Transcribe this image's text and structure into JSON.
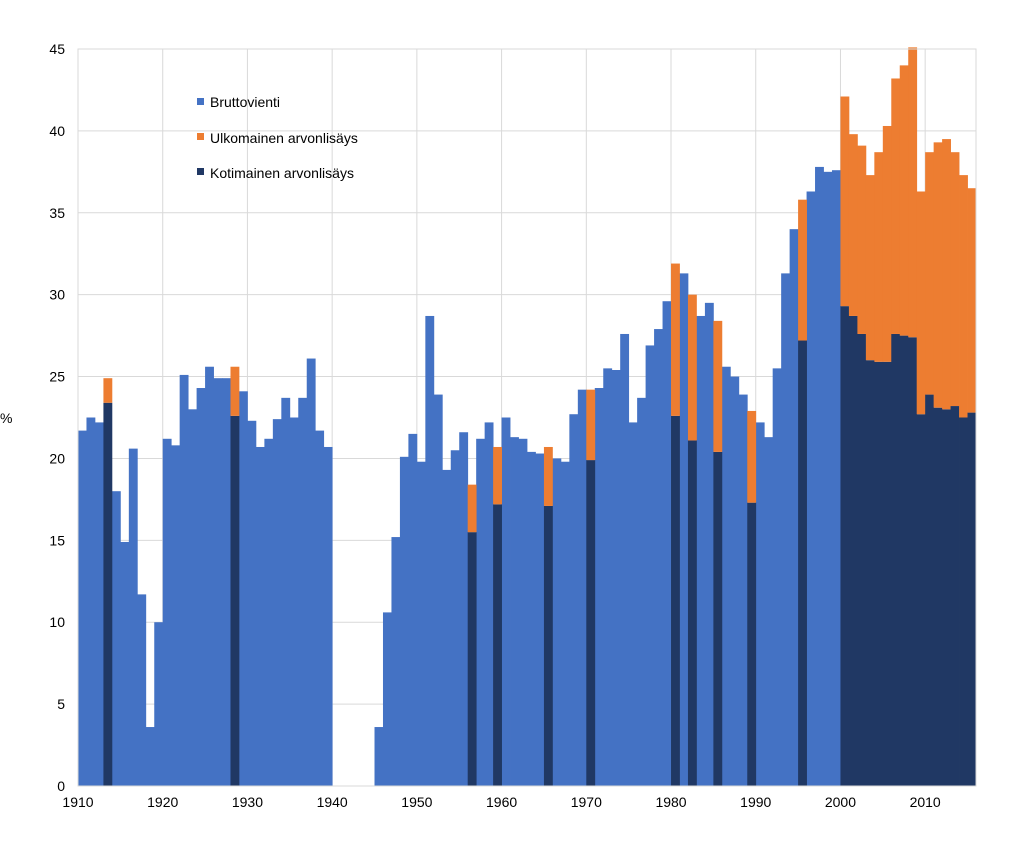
{
  "chart_data": {
    "type": "bar",
    "stacked": true,
    "title": "",
    "xlabel": "",
    "ylabel": "%",
    "ylim": [
      0,
      45
    ],
    "xlim": [
      1910,
      2016
    ],
    "y_ticks": [
      "0",
      "5",
      "10",
      "15",
      "20",
      "25",
      "30",
      "35",
      "40",
      "45"
    ],
    "x_ticks": [
      "1910",
      "1920",
      "1930",
      "1940",
      "1950",
      "1960",
      "1970",
      "1980",
      "1990",
      "2000",
      "2010"
    ],
    "grid": true,
    "legend_position": "top-left",
    "legend": [
      {
        "key": "brutto",
        "label": "Bruttovienti",
        "color": "#4472C4"
      },
      {
        "key": "ulko",
        "label": "Ulkomainen arvonlisäys",
        "color": "#ED7D31"
      },
      {
        "key": "koti",
        "label": "Kotimainen arvonlisäys",
        "color": "#203864"
      }
    ],
    "brutto_years": [
      1910,
      1911,
      1912,
      1913,
      1914,
      1915,
      1916,
      1917,
      1918,
      1919,
      1920,
      1921,
      1922,
      1923,
      1924,
      1925,
      1926,
      1927,
      1928,
      1929,
      1930,
      1931,
      1932,
      1933,
      1934,
      1935,
      1936,
      1937,
      1938,
      1939,
      1945,
      1946,
      1947,
      1948,
      1949,
      1950,
      1951,
      1952,
      1953,
      1954,
      1955,
      1956,
      1957,
      1958,
      1959,
      1960,
      1961,
      1962,
      1963,
      1964,
      1965,
      1966,
      1967,
      1968,
      1969,
      1970,
      1971,
      1972,
      1973,
      1974,
      1975,
      1976,
      1977,
      1978,
      1979,
      1980,
      1981,
      1982,
      1983,
      1984,
      1985,
      1986,
      1987,
      1988,
      1989,
      1990,
      1991,
      1992,
      1993,
      1994,
      1995,
      1996,
      1997,
      1998,
      1999
    ],
    "brutto_values": [
      21.7,
      22.5,
      22.2,
      24.9,
      18.0,
      14.9,
      20.6,
      11.7,
      3.6,
      10.0,
      21.2,
      20.8,
      25.1,
      23.0,
      24.3,
      25.6,
      24.9,
      24.9,
      25.6,
      24.1,
      22.3,
      20.7,
      21.2,
      22.4,
      23.7,
      22.5,
      23.7,
      26.1,
      21.7,
      20.7,
      3.6,
      10.6,
      15.2,
      20.1,
      21.5,
      19.8,
      28.7,
      23.9,
      19.3,
      20.5,
      21.6,
      18.4,
      21.2,
      22.2,
      20.7,
      22.5,
      21.3,
      21.2,
      20.4,
      20.3,
      20.7,
      20.0,
      19.8,
      22.7,
      24.2,
      24.2,
      24.3,
      25.5,
      25.4,
      27.6,
      22.2,
      23.7,
      26.9,
      27.9,
      29.6,
      31.9,
      31.3,
      30.0,
      28.7,
      29.5,
      28.4,
      25.6,
      25.0,
      23.9,
      22.9,
      22.2,
      21.3,
      25.5,
      31.3,
      34.0,
      35.8,
      36.3,
      37.8,
      37.5,
      37.6
    ],
    "split_years": [
      1913,
      1928,
      1956,
      1959,
      1965,
      1970,
      1980,
      1982,
      1985,
      1989,
      1995
    ],
    "split_koti_values": [
      23.4,
      22.6,
      15.5,
      17.2,
      17.1,
      19.9,
      22.6,
      21.1,
      20.4,
      17.3,
      27.2
    ],
    "split_total_values": [
      24.9,
      25.6,
      18.4,
      20.7,
      20.7,
      24.2,
      31.9,
      30.0,
      28.4,
      22.9,
      35.8
    ],
    "stack_years": [
      2000,
      2001,
      2002,
      2003,
      2004,
      2005,
      2006,
      2007,
      2008,
      2009,
      2010,
      2011,
      2012,
      2013,
      2014,
      2015
    ],
    "stack_koti_values": [
      29.3,
      28.7,
      27.6,
      26.0,
      25.9,
      25.9,
      27.6,
      27.5,
      27.4,
      22.7,
      23.9,
      23.1,
      23.0,
      23.2,
      22.5,
      22.8
    ],
    "stack_total_values": [
      42.1,
      39.8,
      39.1,
      37.3,
      38.7,
      40.3,
      43.2,
      44.0,
      45.1,
      36.3,
      38.7,
      39.3,
      39.5,
      38.7,
      37.3,
      36.5
    ]
  }
}
